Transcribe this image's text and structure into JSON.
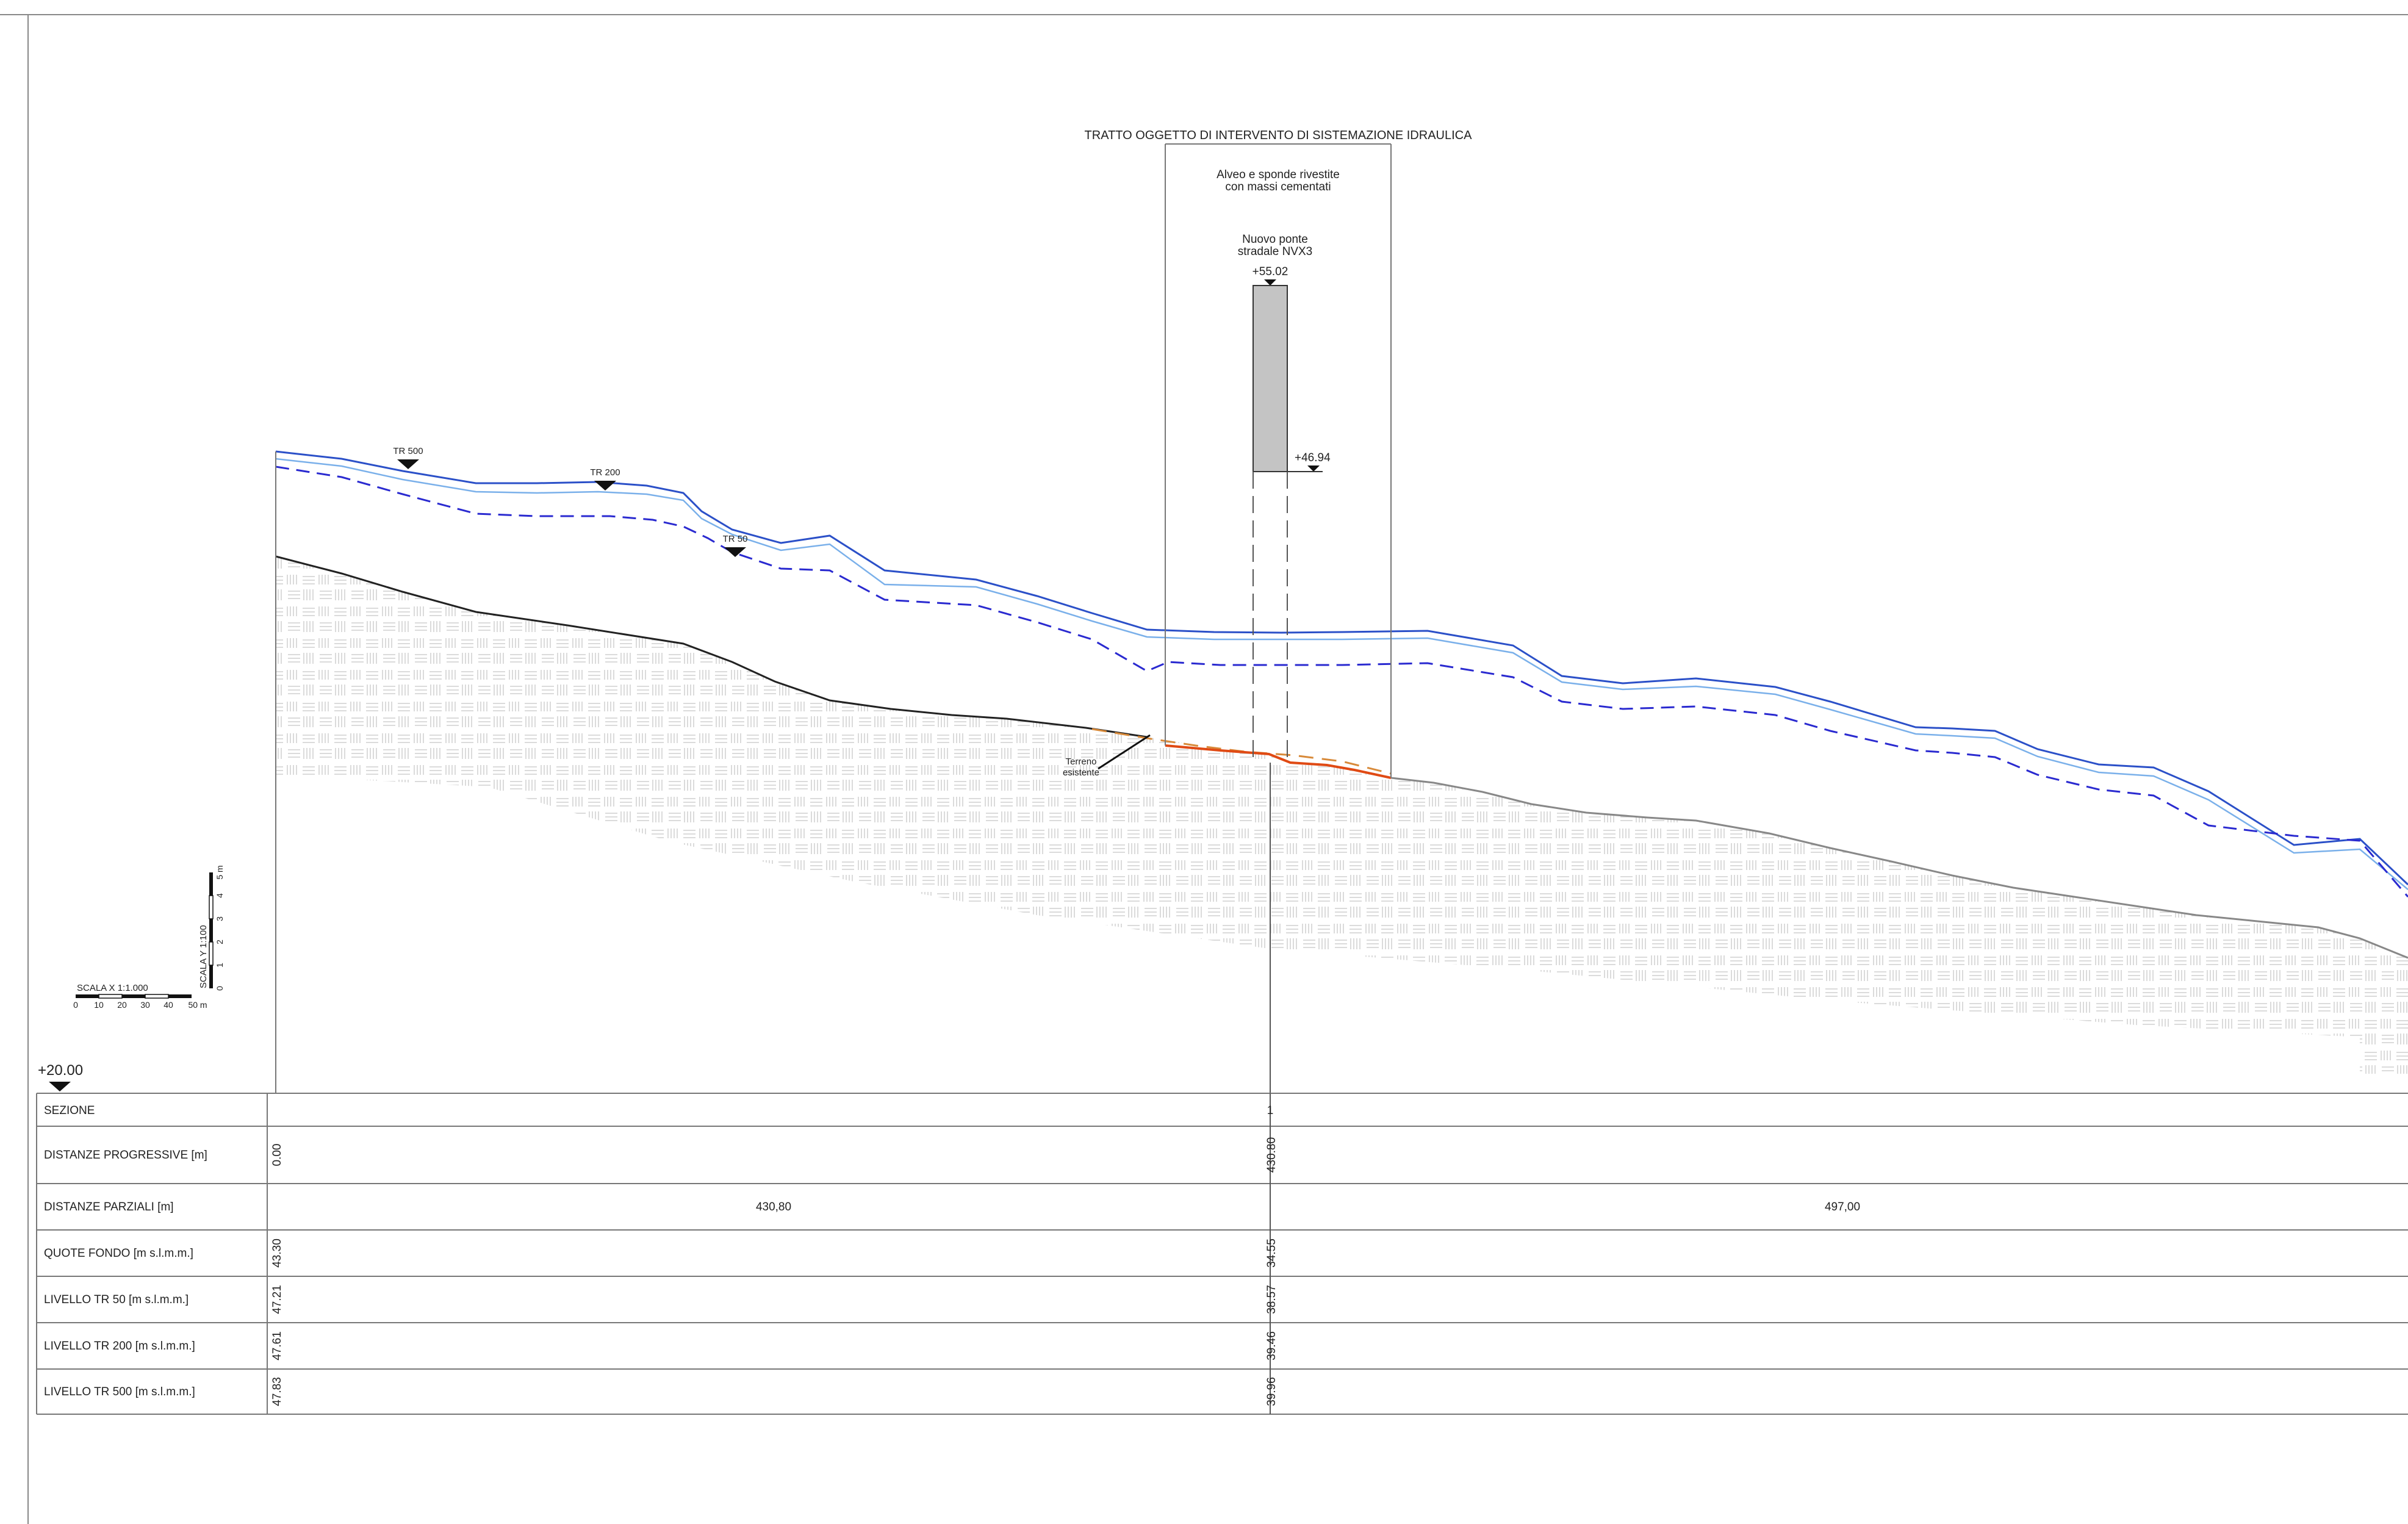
{
  "header": {
    "title": "TRATTO OGGETTO DI INTERVENTO DI SISTEMAZIONE IDRAULICA",
    "lining_note_line1": "Alveo e sponde rivestite",
    "lining_note_line2": "con massi cementati",
    "bridge_label_line1": "Nuovo ponte",
    "bridge_label_line2": "stradale NVX3"
  },
  "elevations": {
    "bridge_deck": "+55.02",
    "bridge_soffit": "+46.94",
    "datum": "+20.00"
  },
  "flood_labels": {
    "tr500": "TR 500",
    "tr200": "TR 200",
    "tr50": "TR 50"
  },
  "terrain_label": {
    "line1": "Terreno",
    "line2": "esistente"
  },
  "scales": {
    "x_title": "SCALA X  1:1.000",
    "x_ticks": [
      "0",
      "10",
      "20",
      "30",
      "40",
      "50 m"
    ],
    "y_title": "SCALA Y  1:100",
    "y_ticks": [
      "0",
      "1",
      "2",
      "3",
      "4",
      "5 m"
    ]
  },
  "table": {
    "sections": [
      "",
      "1"
    ],
    "rows": [
      {
        "label": "SEZIONE",
        "values": [
          "",
          "1"
        ]
      },
      {
        "label": "DISTANZE PROGRESSIVE [m]",
        "values": [
          "0.00",
          "430.80"
        ]
      },
      {
        "label": "DISTANZE PARZIALI [m]",
        "values": [
          "430,80",
          "497,00"
        ]
      },
      {
        "label": "QUOTE FONDO [m s.l.m.m.]",
        "values": [
          "43.30",
          "34.55"
        ]
      },
      {
        "label": "LIVELLO TR 50 [m s.l.m.m.]",
        "values": [
          "47.21",
          "38.57"
        ]
      },
      {
        "label": "LIVELLO TR 200 [m s.l.m.m.]",
        "values": [
          "47.61",
          "39.46"
        ]
      },
      {
        "label": "LIVELLO TR 500 [m s.l.m.m.]",
        "values": [
          "47.83",
          "39.96"
        ]
      }
    ]
  },
  "colors": {
    "tr500": "#2b50c8",
    "tr200": "#7ab0ea",
    "tr50": "#2a2ad0",
    "terrain": "#222222",
    "lining": "#e04a14",
    "lining_existing": "#d88a3a",
    "bridge_fill": "#c4c4c4"
  }
}
